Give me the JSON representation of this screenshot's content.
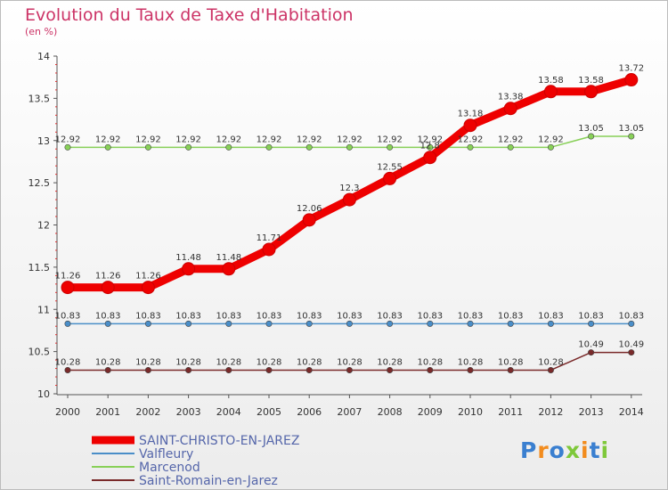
{
  "chart_data": {
    "type": "line",
    "title": "Evolution du Taux de Taxe d'Habitation",
    "subtitle": "(en %)",
    "xlabel": "",
    "ylabel": "",
    "ylim": [
      10,
      14
    ],
    "yticks": [
      "10",
      "10.5",
      "11",
      "11.5",
      "12",
      "12.5",
      "13",
      "13.5",
      "14"
    ],
    "categories": [
      "2000",
      "2001",
      "2002",
      "2003",
      "2004",
      "2005",
      "2006",
      "2007",
      "2008",
      "2009",
      "2010",
      "2011",
      "2012",
      "2013",
      "2014"
    ],
    "series": [
      {
        "name": "SAINT-CHRISTO-EN-JAREZ",
        "color": "#ee0000",
        "values": [
          11.26,
          11.26,
          11.26,
          11.48,
          11.48,
          11.71,
          12.06,
          12.3,
          12.55,
          12.8,
          13.18,
          13.38,
          13.58,
          13.58,
          13.72
        ],
        "labels": [
          "11.26",
          "11.26",
          "11.26",
          "11.48",
          "11.48",
          "11.71",
          "12.06",
          "12.3",
          "12.55",
          "12.8",
          "13.18",
          "13.38",
          "13.58",
          "13.58",
          "13.72"
        ]
      },
      {
        "name": "Valfleury",
        "color": "#4a8ec8",
        "values": [
          10.83,
          10.83,
          10.83,
          10.83,
          10.83,
          10.83,
          10.83,
          10.83,
          10.83,
          10.83,
          10.83,
          10.83,
          10.83,
          10.83,
          10.83
        ],
        "labels": [
          "10.83",
          "10.83",
          "10.83",
          "10.83",
          "10.83",
          "10.83",
          "10.83",
          "10.83",
          "10.83",
          "10.83",
          "10.83",
          "10.83",
          "10.83",
          "10.83",
          "10.83"
        ]
      },
      {
        "name": "Marcenod",
        "color": "#88d058",
        "values": [
          12.92,
          12.92,
          12.92,
          12.92,
          12.92,
          12.92,
          12.92,
          12.92,
          12.92,
          12.92,
          12.92,
          12.92,
          12.92,
          13.05,
          13.05
        ],
        "labels": [
          "12.92",
          "12.92",
          "12.92",
          "12.92",
          "12.92",
          "12.92",
          "12.92",
          "12.92",
          "12.92",
          "12.92",
          "12.92",
          "12.92",
          "12.92",
          "13.05",
          "13.05"
        ]
      },
      {
        "name": "Saint-Romain-en-Jarez",
        "color": "#7a2a2a",
        "values": [
          10.28,
          10.28,
          10.28,
          10.28,
          10.28,
          10.28,
          10.28,
          10.28,
          10.28,
          10.28,
          10.28,
          10.28,
          10.28,
          10.49,
          10.49
        ],
        "labels": [
          "10.28",
          "10.28",
          "10.28",
          "10.28",
          "10.28",
          "10.28",
          "10.28",
          "10.28",
          "10.28",
          "10.28",
          "10.28",
          "10.28",
          "10.28",
          "10.49",
          "10.49"
        ]
      }
    ]
  },
  "logo": {
    "text": "Proxiti"
  }
}
